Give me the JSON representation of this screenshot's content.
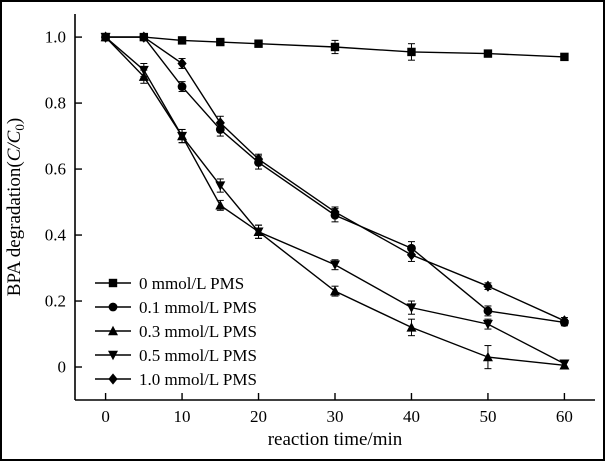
{
  "chart_data": {
    "type": "line",
    "title": "",
    "xlabel": "reaction time/min",
    "ylabel": {
      "prefix": "BPA degradation(",
      "italic": "C/C",
      "sub": "0",
      "suffix": ")"
    },
    "x": [
      0,
      5,
      10,
      15,
      20,
      30,
      40,
      50,
      60
    ],
    "xticks": {
      "values": [
        0,
        10,
        20,
        30,
        40,
        50,
        60
      ],
      "labels": [
        "0",
        "10",
        "20",
        "30",
        "40",
        "50",
        "60"
      ]
    },
    "yticks": {
      "values": [
        0,
        0.2,
        0.4,
        0.6,
        0.8,
        1.0
      ],
      "labels": [
        "0",
        "0.2",
        "0.4",
        "0.6",
        "0.8",
        "1.0"
      ]
    },
    "xlim": [
      -4,
      64
    ],
    "ylim": [
      -0.1,
      1.07
    ],
    "line_color": "#000000",
    "grid": false,
    "legend_position": "lower-left",
    "series": [
      {
        "name": "0 mmol/L PMS",
        "marker": "square",
        "values": [
          1.0,
          1.0,
          0.99,
          0.985,
          0.98,
          0.97,
          0.955,
          0.95,
          0.94
        ],
        "errors": [
          0,
          0,
          0,
          0,
          0,
          0.02,
          0.025,
          0.005,
          0.01
        ]
      },
      {
        "name": "0.1 mmol/L PMS",
        "marker": "circle",
        "values": [
          1.0,
          1.0,
          0.85,
          0.72,
          0.62,
          0.46,
          0.36,
          0.17,
          0.135
        ],
        "errors": [
          0,
          0.01,
          0.015,
          0.02,
          0.02,
          0.02,
          0.02,
          0.015,
          0.01
        ]
      },
      {
        "name": "0.3 mmol/L PMS",
        "marker": "triangle-up",
        "values": [
          1.0,
          0.88,
          0.7,
          0.49,
          0.41,
          0.23,
          0.12,
          0.03,
          0.005
        ],
        "errors": [
          0,
          0.02,
          0.02,
          0.015,
          0.02,
          0.015,
          0.025,
          0.035,
          0.01
        ]
      },
      {
        "name": "0.5 mmol/L PMS",
        "marker": "triangle-down",
        "values": [
          1.0,
          0.9,
          0.7,
          0.55,
          0.41,
          0.31,
          0.18,
          0.13,
          0.01
        ],
        "errors": [
          0,
          0.02,
          0.02,
          0.02,
          0.02,
          0.015,
          0.02,
          0.015,
          0.01
        ]
      },
      {
        "name": "1.0 mmol/L PMS",
        "marker": "diamond",
        "values": [
          1.0,
          1.0,
          0.92,
          0.74,
          0.63,
          0.47,
          0.34,
          0.245,
          0.14
        ],
        "errors": [
          0,
          0.01,
          0.015,
          0.02,
          0.015,
          0.015,
          0.02,
          0.01,
          0.01
        ]
      }
    ]
  }
}
